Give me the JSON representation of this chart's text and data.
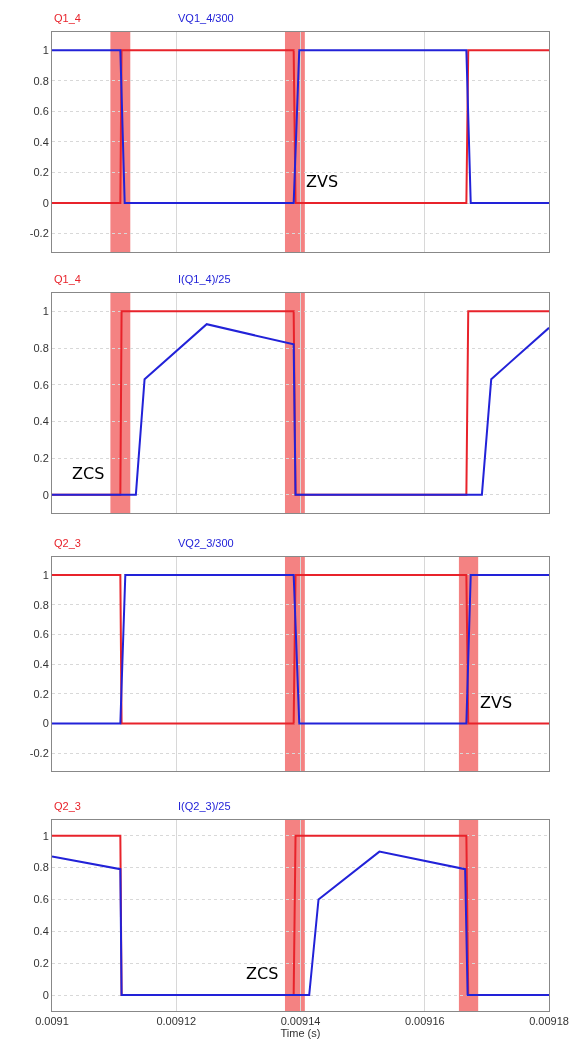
{
  "chart_data": [
    {
      "type": "line",
      "xlim": [
        0.0091,
        0.00918
      ],
      "xticks": [
        0.0091,
        0.00912,
        0.00914,
        0.00916,
        0.00918
      ],
      "ylim": [
        -0.32,
        1.12
      ],
      "yticks": [
        -0.2,
        0,
        0.2,
        0.4,
        0.6,
        0.8,
        1
      ],
      "grid": true,
      "legend": "top left",
      "tick_labels": "y",
      "series": [
        {
          "name": "Q1_4",
          "color": "#e8232b",
          "x": [
            0.0091,
            0.009111,
            0.0091112,
            0.0091389,
            0.0091392,
            0.0091667,
            0.009167,
            0.00918
          ],
          "values": [
            0,
            0,
            1,
            1,
            0,
            0,
            1,
            1
          ]
        },
        {
          "name": "VQ1_4/300",
          "color": "#2222d8",
          "x": [
            0.0091,
            0.009111,
            0.0091117,
            0.0091389,
            0.0091398,
            0.0091667,
            0.0091674,
            0.00918
          ],
          "values": [
            1,
            1,
            0,
            0,
            1,
            1,
            0,
            0
          ]
        }
      ],
      "bands": [
        {
          "axis": "x",
          "from": 0.0091094,
          "to": 0.0091126,
          "color": "#f26c6c"
        },
        {
          "axis": "x",
          "from": 0.0091375,
          "to": 0.0091407,
          "color": "#f26c6c"
        }
      ],
      "annotations": [
        {
          "text": "ZVS",
          "x": 0.0091389,
          "y": 0
        }
      ]
    },
    {
      "type": "line",
      "xlim": [
        0.0091,
        0.00918
      ],
      "xticks": [
        0.0091,
        0.00912,
        0.00914,
        0.00916,
        0.00918
      ],
      "ylim": [
        -0.1,
        1.1
      ],
      "yticks": [
        0,
        0.2,
        0.4,
        0.6,
        0.8,
        1
      ],
      "grid": true,
      "legend": "top left",
      "tick_labels": "y",
      "series": [
        {
          "name": "Q1_4",
          "color": "#e8232b",
          "x": [
            0.0091,
            0.009111,
            0.0091112,
            0.0091389,
            0.0091392,
            0.0091667,
            0.009167,
            0.00918
          ],
          "values": [
            0,
            0,
            1,
            1,
            0,
            0,
            1,
            1
          ]
        },
        {
          "name": "I(Q1_4)/25",
          "color": "#2222d8",
          "x": [
            0.0091,
            0.0091135,
            0.0091149,
            0.0091249,
            0.0091389,
            0.0091392,
            0.0091692,
            0.0091707,
            0.00918
          ],
          "values": [
            0,
            0,
            0.63,
            0.93,
            0.82,
            0,
            0,
            0.63,
            0.91
          ]
        }
      ],
      "bands": [
        {
          "axis": "x",
          "from": 0.0091094,
          "to": 0.0091126,
          "color": "#f26c6c"
        },
        {
          "axis": "x",
          "from": 0.0091375,
          "to": 0.0091407,
          "color": "#f26c6c"
        }
      ],
      "annotations": [
        {
          "text": "ZCS",
          "x": 0.009111,
          "y": 0
        }
      ]
    },
    {
      "type": "line",
      "xlim": [
        0.0091,
        0.00918
      ],
      "xticks": [
        0.0091,
        0.00912,
        0.00914,
        0.00916,
        0.00918
      ],
      "ylim": [
        -0.32,
        1.12
      ],
      "yticks": [
        -0.2,
        0,
        0.2,
        0.4,
        0.6,
        0.8,
        1
      ],
      "grid": true,
      "legend": "top left",
      "tick_labels": "y",
      "series": [
        {
          "name": "Q2_3",
          "color": "#e8232b",
          "x": [
            0.0091,
            0.009111,
            0.0091112,
            0.0091389,
            0.0091392,
            0.0091667,
            0.009167,
            0.00918
          ],
          "values": [
            1,
            1,
            0,
            0,
            1,
            1,
            0,
            0
          ]
        },
        {
          "name": "VQ2_3/300",
          "color": "#2222d8",
          "x": [
            0.0091,
            0.009111,
            0.0091118,
            0.0091389,
            0.0091398,
            0.0091667,
            0.0091674,
            0.00918
          ],
          "values": [
            0,
            0,
            1,
            1,
            0,
            0,
            1,
            1
          ]
        }
      ],
      "bands": [
        {
          "axis": "x",
          "from": 0.0091375,
          "to": 0.0091407,
          "color": "#f26c6c"
        },
        {
          "axis": "x",
          "from": 0.0091655,
          "to": 0.0091686,
          "color": "#f26c6c"
        }
      ],
      "annotations": [
        {
          "text": "ZVS",
          "x": 0.009167,
          "y": 0
        }
      ]
    },
    {
      "type": "line",
      "xlim": [
        0.0091,
        0.00918
      ],
      "xticks": [
        0.0091,
        0.00912,
        0.00914,
        0.00916,
        0.00918
      ],
      "ylim": [
        -0.1,
        1.1
      ],
      "yticks": [
        0,
        0.2,
        0.4,
        0.6,
        0.8,
        1
      ],
      "grid": true,
      "legend": "top left",
      "xlabel": "Time (s)",
      "series": [
        {
          "name": "Q2_3",
          "color": "#e8232b",
          "x": [
            0.0091,
            0.009111,
            0.0091112,
            0.0091389,
            0.0091392,
            0.0091667,
            0.009167,
            0.00918
          ],
          "values": [
            1,
            1,
            0,
            0,
            1,
            1,
            0,
            0
          ]
        },
        {
          "name": "I(Q2_3)/25",
          "color": "#2222d8",
          "x": [
            0.0091,
            0.009111,
            0.0091112,
            0.0091414,
            0.0091429,
            0.0091527,
            0.0091665,
            0.0091669,
            0.00918
          ],
          "values": [
            0.87,
            0.79,
            0,
            0,
            0.6,
            0.9,
            0.79,
            0,
            0
          ]
        }
      ],
      "bands": [
        {
          "axis": "x",
          "from": 0.0091375,
          "to": 0.0091407,
          "color": "#f26c6c"
        },
        {
          "axis": "x",
          "from": 0.0091655,
          "to": 0.0091686,
          "color": "#f26c6c"
        }
      ],
      "annotations": [
        {
          "text": "ZCS",
          "x": 0.0091389,
          "y": 0
        }
      ]
    }
  ]
}
